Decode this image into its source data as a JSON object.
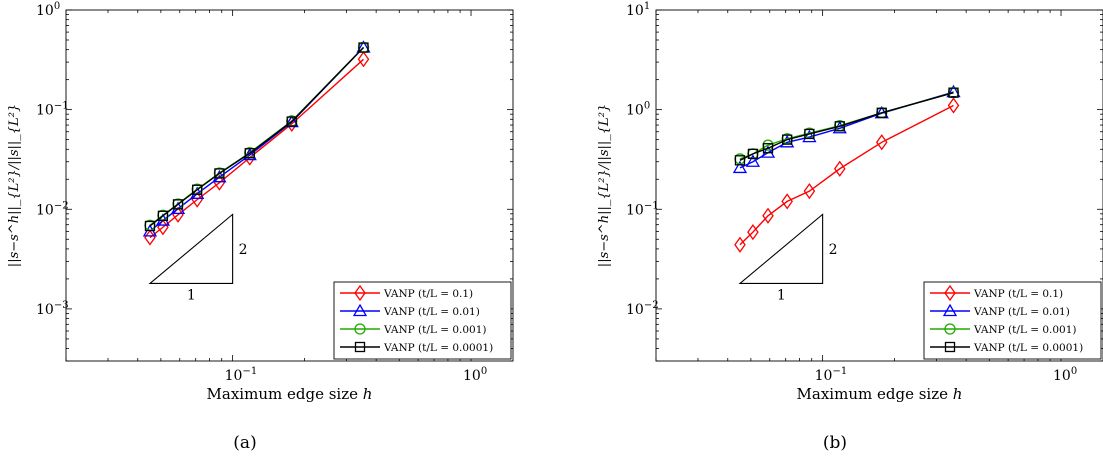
{
  "chart_data": [
    {
      "type": "line",
      "panel_label": "(a)",
      "xlabel": "Maximum edge size h",
      "ylabel": "||s−s^h||_{L²}/||s||_{L²}",
      "x_scale": "log",
      "y_scale": "log",
      "xlim": [
        0.02,
        1.5
      ],
      "ylim": [
        0.0003,
        1
      ],
      "x_ticks": [
        {
          "value": 0.1,
          "label": "10",
          "exp": "−1"
        },
        {
          "value": 1,
          "label": "10",
          "exp": "0"
        }
      ],
      "y_ticks": [
        {
          "value": 0.001,
          "label": "10",
          "exp": "−3"
        },
        {
          "value": 0.01,
          "label": "10",
          "exp": "−2"
        },
        {
          "value": 0.1,
          "label": "10",
          "exp": "−1"
        },
        {
          "value": 1,
          "label": "10",
          "exp": "0"
        }
      ],
      "grid": false,
      "legend_position": "bottom-right",
      "slope_triangle": {
        "run_label": "1",
        "rise_label": "2",
        "x0": 0.045,
        "x1": 0.1,
        "y0": 0.0018
      },
      "series": [
        {
          "name": "VANP (t/L = 0.1)",
          "color": "#ff0000",
          "marker": "diamond",
          "x": [
            0.045,
            0.051,
            0.059,
            0.071,
            0.088,
            0.118,
            0.177,
            0.354
          ],
          "y": [
            0.0052,
            0.0066,
            0.0088,
            0.0125,
            0.0185,
            0.033,
            0.072,
            0.32
          ]
        },
        {
          "name": "VANP (t/L = 0.01)",
          "color": "#0000ff",
          "marker": "triangle",
          "x": [
            0.045,
            0.051,
            0.059,
            0.071,
            0.088,
            0.118,
            0.177,
            0.354
          ],
          "y": [
            0.006,
            0.0077,
            0.0101,
            0.0143,
            0.021,
            0.035,
            0.075,
            0.42
          ]
        },
        {
          "name": "VANP (t/L = 0.001)",
          "color": "#22aa00",
          "marker": "circle",
          "x": [
            0.045,
            0.051,
            0.059,
            0.071,
            0.088,
            0.118,
            0.177,
            0.354
          ],
          "y": [
            0.0069,
            0.0087,
            0.0113,
            0.0159,
            0.0231,
            0.037,
            0.077,
            0.42
          ]
        },
        {
          "name": "VANP (t/L = 0.0001)",
          "color": "#000000",
          "marker": "square",
          "x": [
            0.045,
            0.051,
            0.059,
            0.071,
            0.088,
            0.118,
            0.177,
            0.354
          ],
          "y": [
            0.0068,
            0.0086,
            0.0112,
            0.0157,
            0.0229,
            0.0365,
            0.076,
            0.42
          ]
        }
      ]
    },
    {
      "type": "line",
      "panel_label": "(b)",
      "xlabel": "Maximum edge size h",
      "ylabel": "||s−s^h||_{L²}/||s||_{L²}",
      "x_scale": "log",
      "y_scale": "log",
      "xlim": [
        0.02,
        1.5
      ],
      "ylim": [
        0.003,
        10
      ],
      "x_ticks": [
        {
          "value": 0.1,
          "label": "10",
          "exp": "−1"
        },
        {
          "value": 1,
          "label": "10",
          "exp": "0"
        }
      ],
      "y_ticks": [
        {
          "value": 0.01,
          "label": "10",
          "exp": "−2"
        },
        {
          "value": 0.1,
          "label": "10",
          "exp": "−1"
        },
        {
          "value": 1,
          "label": "10",
          "exp": "0"
        },
        {
          "value": 10,
          "label": "10",
          "exp": "1"
        }
      ],
      "grid": false,
      "legend_position": "bottom-right",
      "slope_triangle": {
        "run_label": "1",
        "rise_label": "2",
        "x0": 0.045,
        "x1": 0.1,
        "y0": 0.018
      },
      "series": [
        {
          "name": "VANP (t/L = 0.1)",
          "color": "#ff0000",
          "marker": "diamond",
          "x": [
            0.045,
            0.051,
            0.059,
            0.071,
            0.088,
            0.118,
            0.177,
            0.354
          ],
          "y": [
            0.044,
            0.059,
            0.086,
            0.12,
            0.152,
            0.255,
            0.47,
            1.1
          ]
        },
        {
          "name": "VANP (t/L = 0.01)",
          "color": "#0000ff",
          "marker": "triangle",
          "x": [
            0.045,
            0.051,
            0.059,
            0.071,
            0.088,
            0.118,
            0.177,
            0.354
          ],
          "y": [
            0.26,
            0.3,
            0.37,
            0.47,
            0.53,
            0.65,
            0.92,
            1.5
          ]
        },
        {
          "name": "VANP (t/L = 0.001)",
          "color": "#22aa00",
          "marker": "circle",
          "x": [
            0.045,
            0.051,
            0.059,
            0.071,
            0.088,
            0.118,
            0.177,
            0.354
          ],
          "y": [
            0.32,
            0.36,
            0.44,
            0.51,
            0.58,
            0.69,
            0.93,
            1.48
          ]
        },
        {
          "name": "VANP (t/L = 0.0001)",
          "color": "#000000",
          "marker": "square",
          "x": [
            0.045,
            0.051,
            0.059,
            0.071,
            0.088,
            0.118,
            0.177,
            0.354
          ],
          "y": [
            0.31,
            0.36,
            0.41,
            0.5,
            0.57,
            0.68,
            0.93,
            1.48
          ]
        }
      ]
    }
  ]
}
